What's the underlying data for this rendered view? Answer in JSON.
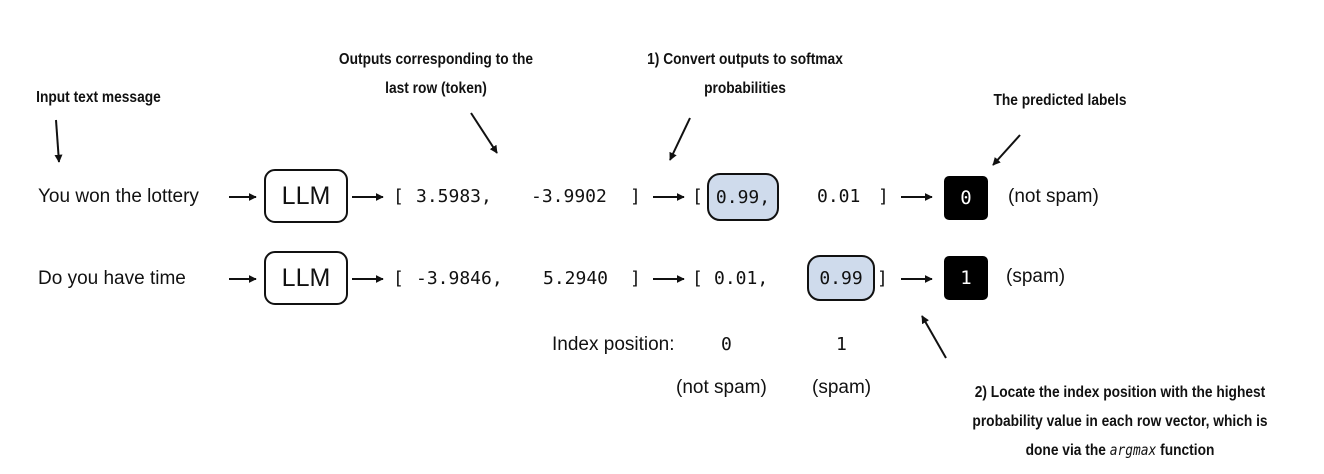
{
  "annotations": {
    "input_text": "Input text message",
    "outputs_last_row": [
      "Outputs corresponding to the",
      "last row (token)"
    ],
    "convert_softmax": [
      "1) Convert outputs to softmax",
      "probabilities"
    ],
    "predicted_labels": "The predicted labels",
    "locate_argmax": {
      "line1": "2) Locate the index position with the highest",
      "line2": "probability value in each row vector, which is",
      "line3_before": "done via the ",
      "line3_code": "argmax",
      "line3_after": " function"
    }
  },
  "llm_label": "LLM",
  "rows": [
    {
      "input": "You won the lottery",
      "logits": [
        "3.5983,",
        "-3.9902"
      ],
      "probs": [
        "0.99,",
        "0.01"
      ],
      "highlight_index": 0,
      "label": "0",
      "label_text": "(not spam)"
    },
    {
      "input": "Do you have time",
      "logits": [
        "-3.9846,",
        "5.2940"
      ],
      "probs": [
        "0.01,",
        "0.99"
      ],
      "highlight_index": 1,
      "label": "1",
      "label_text": "(spam)"
    }
  ],
  "brackets": {
    "open": "[",
    "close": "]"
  },
  "index_position": {
    "label": "Index position:",
    "indices": [
      "0",
      "1"
    ],
    "names": [
      "(not spam)",
      "(spam)"
    ]
  }
}
